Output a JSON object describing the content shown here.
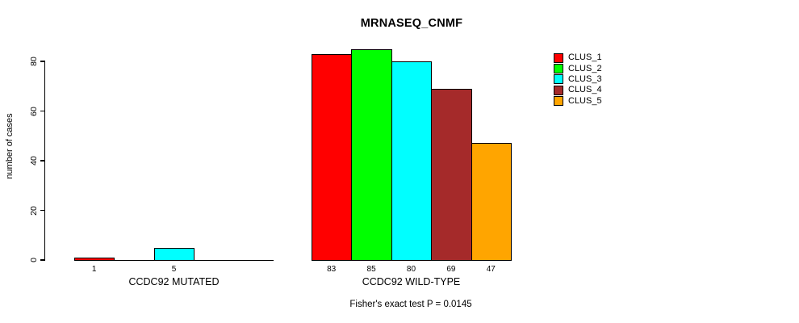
{
  "chart_data": {
    "type": "bar",
    "title": "MRNASEQ_CNMF",
    "ylabel": "number of cases",
    "xlabel": "",
    "ylim": [
      0,
      80
    ],
    "yticks": [
      0,
      20,
      40,
      60,
      80
    ],
    "grid": false,
    "legend_position": "right",
    "clusters": [
      "CLUS_1",
      "CLUS_2",
      "CLUS_3",
      "CLUS_4",
      "CLUS_5"
    ],
    "colors": [
      "#ff0000",
      "#00ff00",
      "#00ffff",
      "#a52a2a",
      "#ffa500"
    ],
    "groups": [
      {
        "label": "CCDC92 MUTATED",
        "values": [
          1,
          0,
          5,
          0,
          0
        ],
        "bar_labels": [
          "1",
          "",
          "5",
          "",
          ""
        ]
      },
      {
        "label": "CCDC92 WILD-TYPE",
        "values": [
          83,
          85,
          80,
          69,
          47
        ],
        "bar_labels": [
          "83",
          "85",
          "80",
          "69",
          "47"
        ]
      }
    ],
    "annotation": "Fisher's exact test P = 0.0145"
  }
}
